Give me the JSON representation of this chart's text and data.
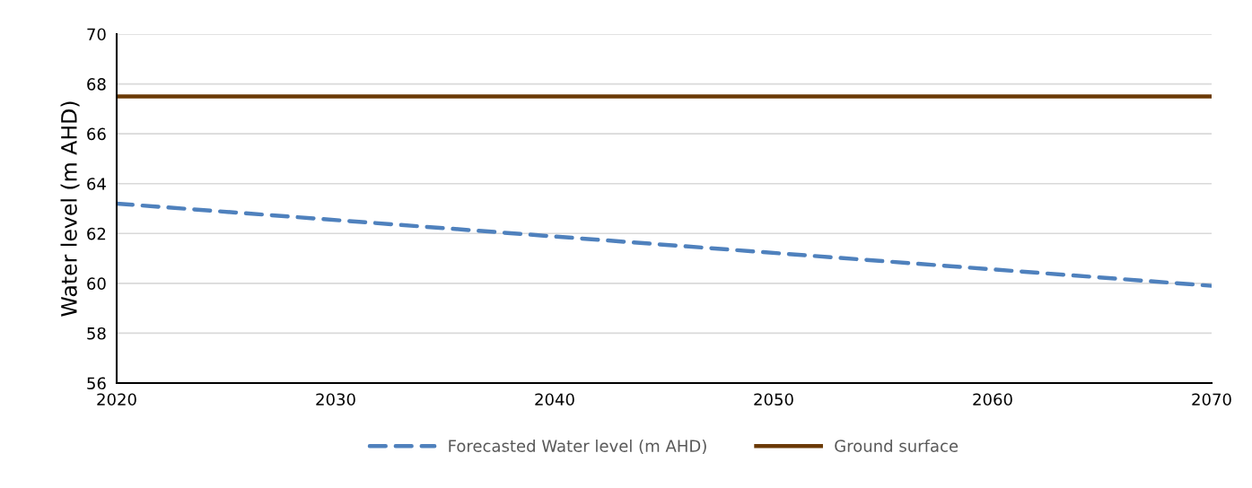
{
  "chart_data": {
    "type": "line",
    "ylabel": "Water level (m AHD)",
    "x": [
      2020,
      2070
    ],
    "series": [
      {
        "name": "Forecasted Water level (m AHD)",
        "color": "#4f81bd",
        "values": [
          63.2,
          59.9
        ],
        "line_style": "dashed"
      },
      {
        "name": "Ground surface",
        "color": "#6b3a07",
        "values": [
          67.5,
          67.5
        ],
        "line_style": "solid"
      }
    ],
    "xlim": [
      2020,
      2070
    ],
    "xticks": [
      2020,
      2030,
      2040,
      2050,
      2060,
      2070
    ],
    "ylim": [
      56,
      70
    ],
    "yticks": [
      56,
      58,
      60,
      62,
      64,
      66,
      68,
      70
    ],
    "grid": "y",
    "legend": "bottom",
    "marker": "none"
  }
}
